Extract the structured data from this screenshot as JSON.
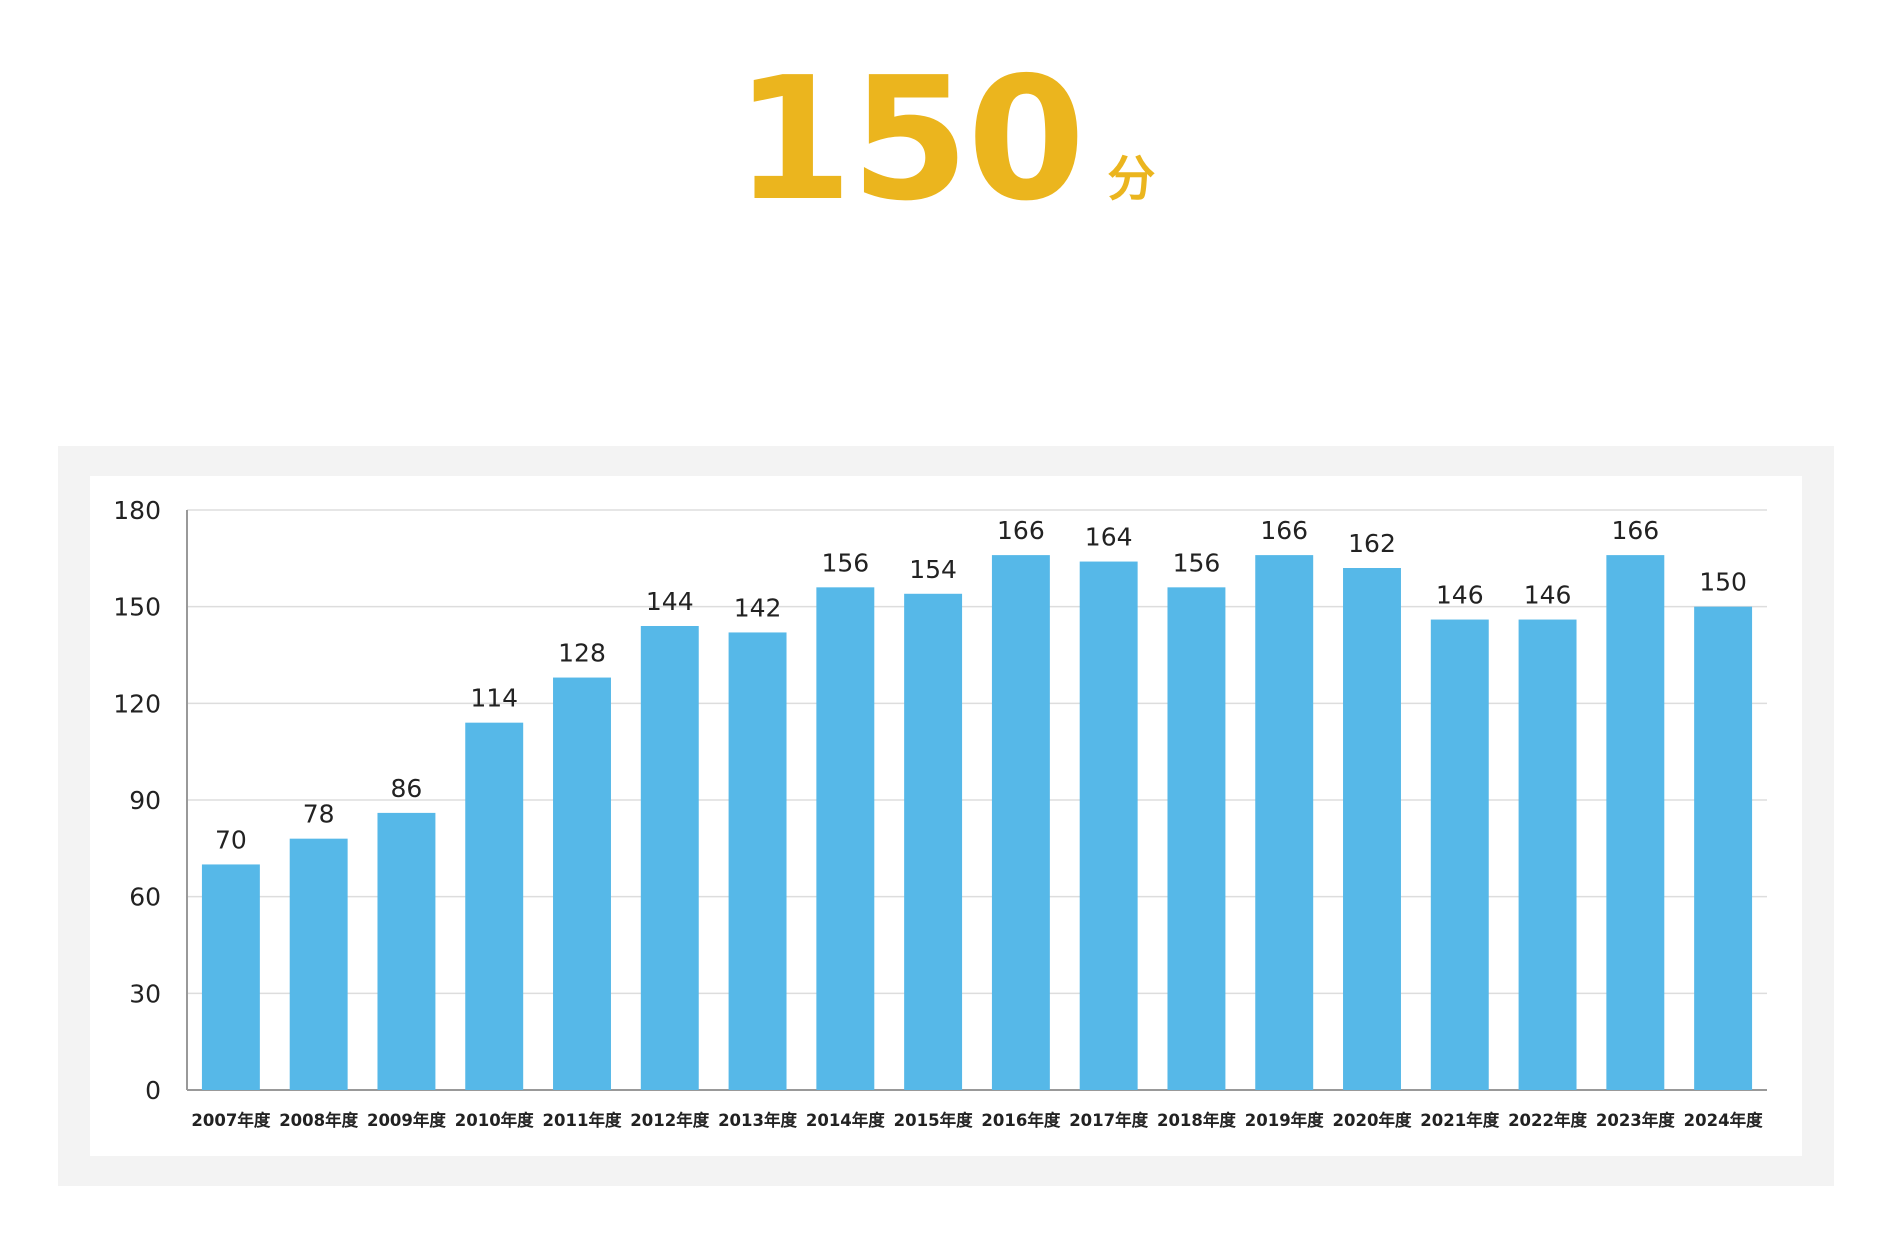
{
  "headline": {
    "value": "150",
    "unit": "分"
  },
  "colors": {
    "accent": "#ebb51e",
    "bar": "#56b8e8",
    "panel": "#f3f3f3",
    "grid": "#dddddd",
    "axis": "#999999"
  },
  "chart_data": {
    "type": "bar",
    "categories": [
      "2007年度",
      "2008年度",
      "2009年度",
      "2010年度",
      "2011年度",
      "2012年度",
      "2013年度",
      "2014年度",
      "2015年度",
      "2016年度",
      "2017年度",
      "2018年度",
      "2019年度",
      "2020年度",
      "2021年度",
      "2022年度",
      "2023年度",
      "2024年度"
    ],
    "values": [
      70,
      78,
      86,
      114,
      128,
      144,
      142,
      156,
      154,
      166,
      164,
      156,
      166,
      162,
      146,
      146,
      166,
      150
    ],
    "ylim": [
      0,
      180
    ],
    "yticks": [
      0,
      30,
      60,
      90,
      120,
      150,
      180
    ],
    "grid": true,
    "data_labels": true,
    "title": "",
    "xlabel": "",
    "ylabel": ""
  }
}
